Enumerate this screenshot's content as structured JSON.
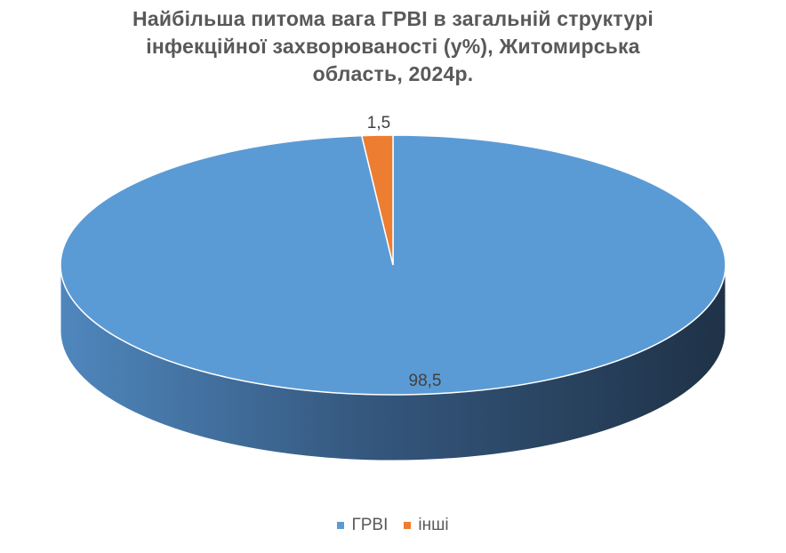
{
  "chart_data": {
    "type": "pie",
    "title_lines": [
      "Найбільша питома вага ГРВІ в загальній структурі",
      "інфекційної захворюваності (у%), Житомирська",
      "область, 2024р."
    ],
    "categories": [
      "ГРВІ",
      "інші"
    ],
    "values": [
      98.5,
      1.5
    ],
    "data_labels": [
      "98,5",
      "1,5"
    ],
    "colors": [
      "#5B9BD5",
      "#ED7D31"
    ],
    "legend_position": "bottom",
    "style": "3d"
  }
}
